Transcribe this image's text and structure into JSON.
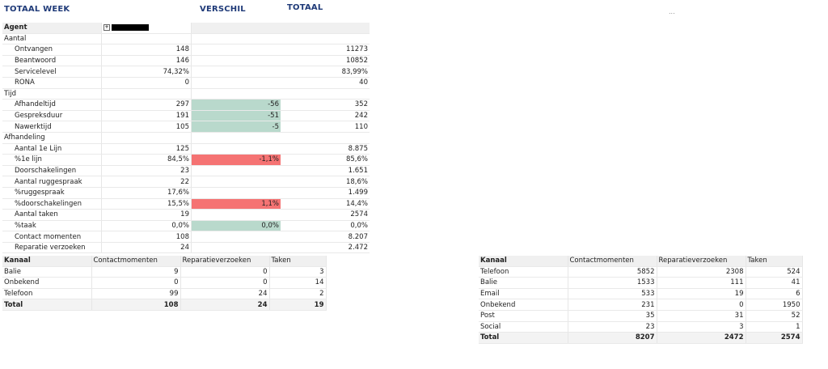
{
  "header": {
    "week_title": "TOTAAL WEEK",
    "verschil_title": "VERSCHIL",
    "totaal_title": "TOTAAL",
    "more_glyph": "..."
  },
  "main_table": {
    "agent_label": "Agent",
    "expand_glyph": "+",
    "rows": [
      {
        "type": "section",
        "label": "Aantal"
      },
      {
        "type": "row",
        "label": "Ontvangen",
        "week": "148",
        "diff": "",
        "diff_color": "",
        "total": "11273"
      },
      {
        "type": "row",
        "label": "Beantwoord",
        "week": "146",
        "diff": "",
        "diff_color": "",
        "total": "10852"
      },
      {
        "type": "row",
        "label": "Servicelevel",
        "week": "74,32%",
        "diff": "",
        "diff_color": "",
        "total": "83,99%"
      },
      {
        "type": "row",
        "label": "RONA",
        "week": "0",
        "diff": "",
        "diff_color": "",
        "total": "40"
      },
      {
        "type": "section",
        "label": "Tijd"
      },
      {
        "type": "row",
        "label": "Afhandeltijd",
        "week": "297",
        "diff": "-56",
        "diff_color": "green",
        "total": "352"
      },
      {
        "type": "row",
        "label": "Gespreksduur",
        "week": "191",
        "diff": "-51",
        "diff_color": "green",
        "total": "242"
      },
      {
        "type": "row",
        "label": "Nawerktijd",
        "week": "105",
        "diff": "-5",
        "diff_color": "green",
        "total": "110"
      },
      {
        "type": "section",
        "label": "Afhandeling"
      },
      {
        "type": "row",
        "label": "Aantal 1e Lijn",
        "week": "125",
        "diff": "",
        "diff_color": "",
        "total": "8.875"
      },
      {
        "type": "row",
        "label": "%1e lijn",
        "week": "84,5%",
        "diff": "-1,1%",
        "diff_color": "red",
        "total": "85,6%"
      },
      {
        "type": "row",
        "label": "Doorschakelingen",
        "week": "23",
        "diff": "",
        "diff_color": "",
        "total": "1.651"
      },
      {
        "type": "row",
        "label": "Aantal ruggespraak",
        "week": "22",
        "diff": "",
        "diff_color": "",
        "total": "18,6%"
      },
      {
        "type": "row",
        "label": "%ruggespraak",
        "week": "17,6%",
        "diff": "",
        "diff_color": "",
        "total": "1.499"
      },
      {
        "type": "row",
        "label": "%doorschakelingen",
        "week": "15,5%",
        "diff": "1,1%",
        "diff_color": "red",
        "total": "14,4%"
      },
      {
        "type": "row",
        "label": "Aantal taken",
        "week": "19",
        "diff": "",
        "diff_color": "",
        "total": "2574"
      },
      {
        "type": "row",
        "label": "%taak",
        "week": "0,0%",
        "diff": "0,0%",
        "diff_color": "green",
        "total": "0,0%"
      },
      {
        "type": "row",
        "label": "Contact momenten",
        "week": "108",
        "diff": "",
        "diff_color": "",
        "total": "8.207"
      },
      {
        "type": "row",
        "label": "Reparatie verzoeken",
        "week": "24",
        "diff": "",
        "diff_color": "",
        "total": "2.472"
      }
    ]
  },
  "channel_week": {
    "headers": [
      "Kanaal",
      "Contactmomenten",
      "Reparatieverzoeken",
      "Taken"
    ],
    "rows": [
      [
        "Balie",
        "9",
        "0",
        "3"
      ],
      [
        "Onbekend",
        "0",
        "0",
        "14"
      ],
      [
        "Telefoon",
        "99",
        "24",
        "2"
      ]
    ],
    "total": [
      "Total",
      "108",
      "24",
      "19"
    ]
  },
  "channel_total": {
    "headers": [
      "Kanaal",
      "Contactmomenten",
      "Reparatieverzoeken",
      "Taken"
    ],
    "rows": [
      [
        "Telefoon",
        "5852",
        "2308",
        "524"
      ],
      [
        "Balie",
        "1533",
        "111",
        "41"
      ],
      [
        "Email",
        "533",
        "19",
        "6"
      ],
      [
        "Onbekend",
        "231",
        "0",
        "1950"
      ],
      [
        "Post",
        "35",
        "31",
        "52"
      ],
      [
        "Social",
        "23",
        "3",
        "1"
      ]
    ],
    "total": [
      "Total",
      "8207",
      "2472",
      "2574"
    ]
  }
}
